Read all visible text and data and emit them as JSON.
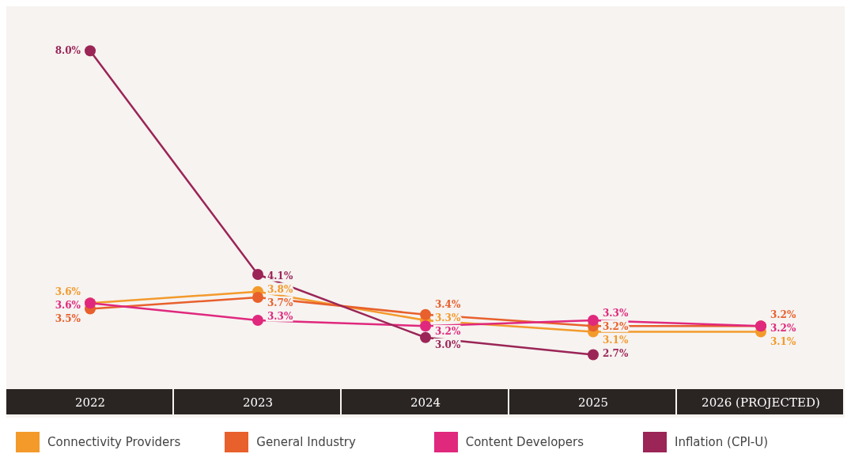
{
  "chart_data": {
    "type": "line",
    "categories": [
      "2022",
      "2023",
      "2024",
      "2025",
      "2026 (PROJECTED)"
    ],
    "series": [
      {
        "name": "Connectivity Providers",
        "color": "#f39a2b",
        "values": [
          3.6,
          3.8,
          3.3,
          3.1,
          3.1
        ],
        "value_labels": [
          "3.6%",
          "3.8%",
          "3.3%",
          "3.1%",
          "3.1%"
        ]
      },
      {
        "name": "General Industry",
        "color": "#e8602c",
        "values": [
          3.5,
          3.7,
          3.4,
          3.2,
          3.2
        ],
        "value_labels": [
          "3.5%",
          "3.7%",
          "3.4%",
          "3.2%",
          "3.2%"
        ]
      },
      {
        "name": "Content Developers",
        "color": "#e0287d",
        "values": [
          3.6,
          3.3,
          3.2,
          3.3,
          3.2
        ],
        "value_labels": [
          "3.6%",
          "3.3%",
          "3.2%",
          "3.3%",
          "3.2%"
        ]
      },
      {
        "name": "Inflation (CPI-U)",
        "color": "#9b2556",
        "values": [
          8.0,
          4.1,
          3.0,
          2.7,
          null
        ],
        "value_labels": [
          "8.0%",
          "4.1%",
          "3.0%",
          "2.7%",
          null
        ]
      }
    ],
    "marker": "circle",
    "legend": "bottom"
  }
}
